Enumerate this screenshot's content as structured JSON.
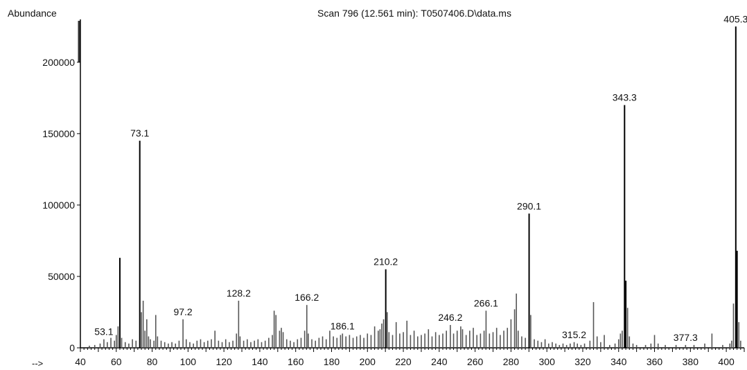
{
  "chart_data": {
    "type": "bar",
    "title": "Scan 796 (12.561 min): T0507406.D\\data.ms",
    "ylabel": "Abundance",
    "x_prefix": "-->",
    "xlim": [
      40,
      410
    ],
    "ylim": [
      0,
      230000
    ],
    "x_ticks": [
      40,
      60,
      80,
      100,
      120,
      140,
      160,
      180,
      200,
      220,
      240,
      260,
      280,
      300,
      320,
      340,
      360,
      380,
      400
    ],
    "y_ticks": [
      0,
      50000,
      100000,
      150000,
      200000
    ],
    "grid": false,
    "legend": "none",
    "colors": {
      "bar": "#555555",
      "line": "#000000"
    },
    "peak_labels": [
      {
        "label": "53.1",
        "x": 53.1,
        "y": 6000
      },
      {
        "label": "73.1",
        "x": 73.1,
        "y": 145000
      },
      {
        "label": "97.2",
        "x": 97.2,
        "y": 20000
      },
      {
        "label": "128.2",
        "x": 128.2,
        "y": 33000
      },
      {
        "label": "166.2",
        "x": 166.2,
        "y": 30000
      },
      {
        "label": "186.1",
        "x": 186.1,
        "y": 10000
      },
      {
        "label": "210.2",
        "x": 210.2,
        "y": 55000
      },
      {
        "label": "246.2",
        "x": 246.2,
        "y": 16000
      },
      {
        "label": "266.1",
        "x": 266.1,
        "y": 26000
      },
      {
        "label": "290.1",
        "x": 290.1,
        "y": 94000
      },
      {
        "label": "315.2",
        "x": 315.2,
        "y": 4000
      },
      {
        "label": "343.3",
        "x": 343.3,
        "y": 170000
      },
      {
        "label": "377.3",
        "x": 377.3,
        "y": 2000
      },
      {
        "label": "405.3",
        "x": 405.3,
        "y": 225000
      }
    ],
    "peaks": [
      {
        "x": 45,
        "y": 1500
      },
      {
        "x": 48,
        "y": 2000
      },
      {
        "x": 51,
        "y": 3000
      },
      {
        "x": 53.1,
        "y": 6000
      },
      {
        "x": 55,
        "y": 4000
      },
      {
        "x": 57,
        "y": 7000
      },
      {
        "x": 59,
        "y": 5000
      },
      {
        "x": 60,
        "y": 9000
      },
      {
        "x": 61,
        "y": 15000
      },
      {
        "x": 62,
        "y": 63000
      },
      {
        "x": 63,
        "y": 7000
      },
      {
        "x": 65,
        "y": 4000
      },
      {
        "x": 67,
        "y": 3000
      },
      {
        "x": 69,
        "y": 6000
      },
      {
        "x": 71,
        "y": 5000
      },
      {
        "x": 73.1,
        "y": 145000
      },
      {
        "x": 74,
        "y": 25000
      },
      {
        "x": 75,
        "y": 33000
      },
      {
        "x": 76,
        "y": 12000
      },
      {
        "x": 77,
        "y": 20000
      },
      {
        "x": 78,
        "y": 8000
      },
      {
        "x": 79,
        "y": 6000
      },
      {
        "x": 81,
        "y": 5000
      },
      {
        "x": 82,
        "y": 23000
      },
      {
        "x": 83,
        "y": 8000
      },
      {
        "x": 85,
        "y": 5000
      },
      {
        "x": 87,
        "y": 4000
      },
      {
        "x": 89,
        "y": 3000
      },
      {
        "x": 91,
        "y": 4000
      },
      {
        "x": 93,
        "y": 3000
      },
      {
        "x": 95,
        "y": 5000
      },
      {
        "x": 97.2,
        "y": 20000
      },
      {
        "x": 99,
        "y": 6000
      },
      {
        "x": 101,
        "y": 4000
      },
      {
        "x": 103,
        "y": 3000
      },
      {
        "x": 105,
        "y": 5000
      },
      {
        "x": 107,
        "y": 6000
      },
      {
        "x": 109,
        "y": 4000
      },
      {
        "x": 111,
        "y": 5000
      },
      {
        "x": 113,
        "y": 6000
      },
      {
        "x": 115,
        "y": 12000
      },
      {
        "x": 117,
        "y": 5000
      },
      {
        "x": 119,
        "y": 4000
      },
      {
        "x": 121,
        "y": 6000
      },
      {
        "x": 123,
        "y": 4000
      },
      {
        "x": 125,
        "y": 5000
      },
      {
        "x": 127,
        "y": 10000
      },
      {
        "x": 128.2,
        "y": 33000
      },
      {
        "x": 129,
        "y": 8000
      },
      {
        "x": 131,
        "y": 5000
      },
      {
        "x": 133,
        "y": 6000
      },
      {
        "x": 135,
        "y": 4000
      },
      {
        "x": 137,
        "y": 5000
      },
      {
        "x": 139,
        "y": 6000
      },
      {
        "x": 141,
        "y": 4000
      },
      {
        "x": 143,
        "y": 5000
      },
      {
        "x": 145,
        "y": 7000
      },
      {
        "x": 147,
        "y": 9000
      },
      {
        "x": 148,
        "y": 26000
      },
      {
        "x": 149,
        "y": 23000
      },
      {
        "x": 151,
        "y": 12000
      },
      {
        "x": 152,
        "y": 14000
      },
      {
        "x": 153,
        "y": 11000
      },
      {
        "x": 155,
        "y": 6000
      },
      {
        "x": 157,
        "y": 5000
      },
      {
        "x": 159,
        "y": 4000
      },
      {
        "x": 161,
        "y": 6000
      },
      {
        "x": 163,
        "y": 7000
      },
      {
        "x": 165,
        "y": 12000
      },
      {
        "x": 166.2,
        "y": 30000
      },
      {
        "x": 167,
        "y": 10000
      },
      {
        "x": 169,
        "y": 6000
      },
      {
        "x": 171,
        "y": 5000
      },
      {
        "x": 173,
        "y": 7000
      },
      {
        "x": 175,
        "y": 8000
      },
      {
        "x": 177,
        "y": 6000
      },
      {
        "x": 179,
        "y": 12000
      },
      {
        "x": 181,
        "y": 8000
      },
      {
        "x": 183,
        "y": 7000
      },
      {
        "x": 185,
        "y": 9000
      },
      {
        "x": 186.1,
        "y": 10000
      },
      {
        "x": 188,
        "y": 8000
      },
      {
        "x": 190,
        "y": 9000
      },
      {
        "x": 192,
        "y": 7000
      },
      {
        "x": 194,
        "y": 8000
      },
      {
        "x": 196,
        "y": 9000
      },
      {
        "x": 198,
        "y": 7000
      },
      {
        "x": 200,
        "y": 10000
      },
      {
        "x": 202,
        "y": 9000
      },
      {
        "x": 204,
        "y": 15000
      },
      {
        "x": 206,
        "y": 12000
      },
      {
        "x": 207,
        "y": 13000
      },
      {
        "x": 208,
        "y": 17000
      },
      {
        "x": 209,
        "y": 20000
      },
      {
        "x": 210.2,
        "y": 55000
      },
      {
        "x": 211,
        "y": 25000
      },
      {
        "x": 212,
        "y": 11000
      },
      {
        "x": 214,
        "y": 9000
      },
      {
        "x": 216,
        "y": 18000
      },
      {
        "x": 218,
        "y": 10000
      },
      {
        "x": 220,
        "y": 11000
      },
      {
        "x": 222,
        "y": 19000
      },
      {
        "x": 224,
        "y": 9000
      },
      {
        "x": 226,
        "y": 12000
      },
      {
        "x": 228,
        "y": 8000
      },
      {
        "x": 230,
        "y": 9000
      },
      {
        "x": 232,
        "y": 10000
      },
      {
        "x": 234,
        "y": 13000
      },
      {
        "x": 236,
        "y": 8000
      },
      {
        "x": 238,
        "y": 11000
      },
      {
        "x": 240,
        "y": 9000
      },
      {
        "x": 242,
        "y": 10000
      },
      {
        "x": 244,
        "y": 12000
      },
      {
        "x": 246.2,
        "y": 16000
      },
      {
        "x": 248,
        "y": 10000
      },
      {
        "x": 250,
        "y": 12000
      },
      {
        "x": 252,
        "y": 15000
      },
      {
        "x": 253,
        "y": 13000
      },
      {
        "x": 255,
        "y": 9000
      },
      {
        "x": 257,
        "y": 12000
      },
      {
        "x": 259,
        "y": 14000
      },
      {
        "x": 261,
        "y": 9000
      },
      {
        "x": 263,
        "y": 10000
      },
      {
        "x": 265,
        "y": 12000
      },
      {
        "x": 266.1,
        "y": 26000
      },
      {
        "x": 268,
        "y": 10000
      },
      {
        "x": 270,
        "y": 11000
      },
      {
        "x": 272,
        "y": 14000
      },
      {
        "x": 274,
        "y": 9000
      },
      {
        "x": 276,
        "y": 12000
      },
      {
        "x": 278,
        "y": 14000
      },
      {
        "x": 280,
        "y": 20000
      },
      {
        "x": 282,
        "y": 27000
      },
      {
        "x": 283,
        "y": 38000
      },
      {
        "x": 284,
        "y": 12000
      },
      {
        "x": 286,
        "y": 8000
      },
      {
        "x": 288,
        "y": 7000
      },
      {
        "x": 290.1,
        "y": 94000
      },
      {
        "x": 291,
        "y": 23000
      },
      {
        "x": 293,
        "y": 6000
      },
      {
        "x": 295,
        "y": 5000
      },
      {
        "x": 297,
        "y": 4000
      },
      {
        "x": 299,
        "y": 6000
      },
      {
        "x": 301,
        "y": 3000
      },
      {
        "x": 303,
        "y": 4000
      },
      {
        "x": 305,
        "y": 3000
      },
      {
        "x": 307,
        "y": 2000
      },
      {
        "x": 309,
        "y": 3000
      },
      {
        "x": 311,
        "y": 2000
      },
      {
        "x": 313,
        "y": 3000
      },
      {
        "x": 315.2,
        "y": 4000
      },
      {
        "x": 317,
        "y": 3000
      },
      {
        "x": 319,
        "y": 2000
      },
      {
        "x": 321,
        "y": 3000
      },
      {
        "x": 324,
        "y": 5000
      },
      {
        "x": 326,
        "y": 32000
      },
      {
        "x": 328,
        "y": 8000
      },
      {
        "x": 330,
        "y": 4000
      },
      {
        "x": 332,
        "y": 9000
      },
      {
        "x": 335,
        "y": 2000
      },
      {
        "x": 338,
        "y": 3000
      },
      {
        "x": 340,
        "y": 6000
      },
      {
        "x": 341,
        "y": 10000
      },
      {
        "x": 342,
        "y": 12000
      },
      {
        "x": 343.3,
        "y": 170000
      },
      {
        "x": 344,
        "y": 47000
      },
      {
        "x": 345,
        "y": 28000
      },
      {
        "x": 346,
        "y": 8000
      },
      {
        "x": 348,
        "y": 3000
      },
      {
        "x": 350,
        "y": 2000
      },
      {
        "x": 355,
        "y": 2000
      },
      {
        "x": 358,
        "y": 3000
      },
      {
        "x": 360,
        "y": 9000
      },
      {
        "x": 362,
        "y": 3000
      },
      {
        "x": 366,
        "y": 2000
      },
      {
        "x": 372,
        "y": 2000
      },
      {
        "x": 377.3,
        "y": 2000
      },
      {
        "x": 382,
        "y": 2000
      },
      {
        "x": 388,
        "y": 3000
      },
      {
        "x": 392,
        "y": 10000
      },
      {
        "x": 398,
        "y": 2000
      },
      {
        "x": 402,
        "y": 3000
      },
      {
        "x": 403,
        "y": 5000
      },
      {
        "x": 404,
        "y": 31000
      },
      {
        "x": 405.3,
        "y": 225000
      },
      {
        "x": 406,
        "y": 68000
      },
      {
        "x": 407,
        "y": 18000
      },
      {
        "x": 408,
        "y": 5000
      }
    ]
  }
}
